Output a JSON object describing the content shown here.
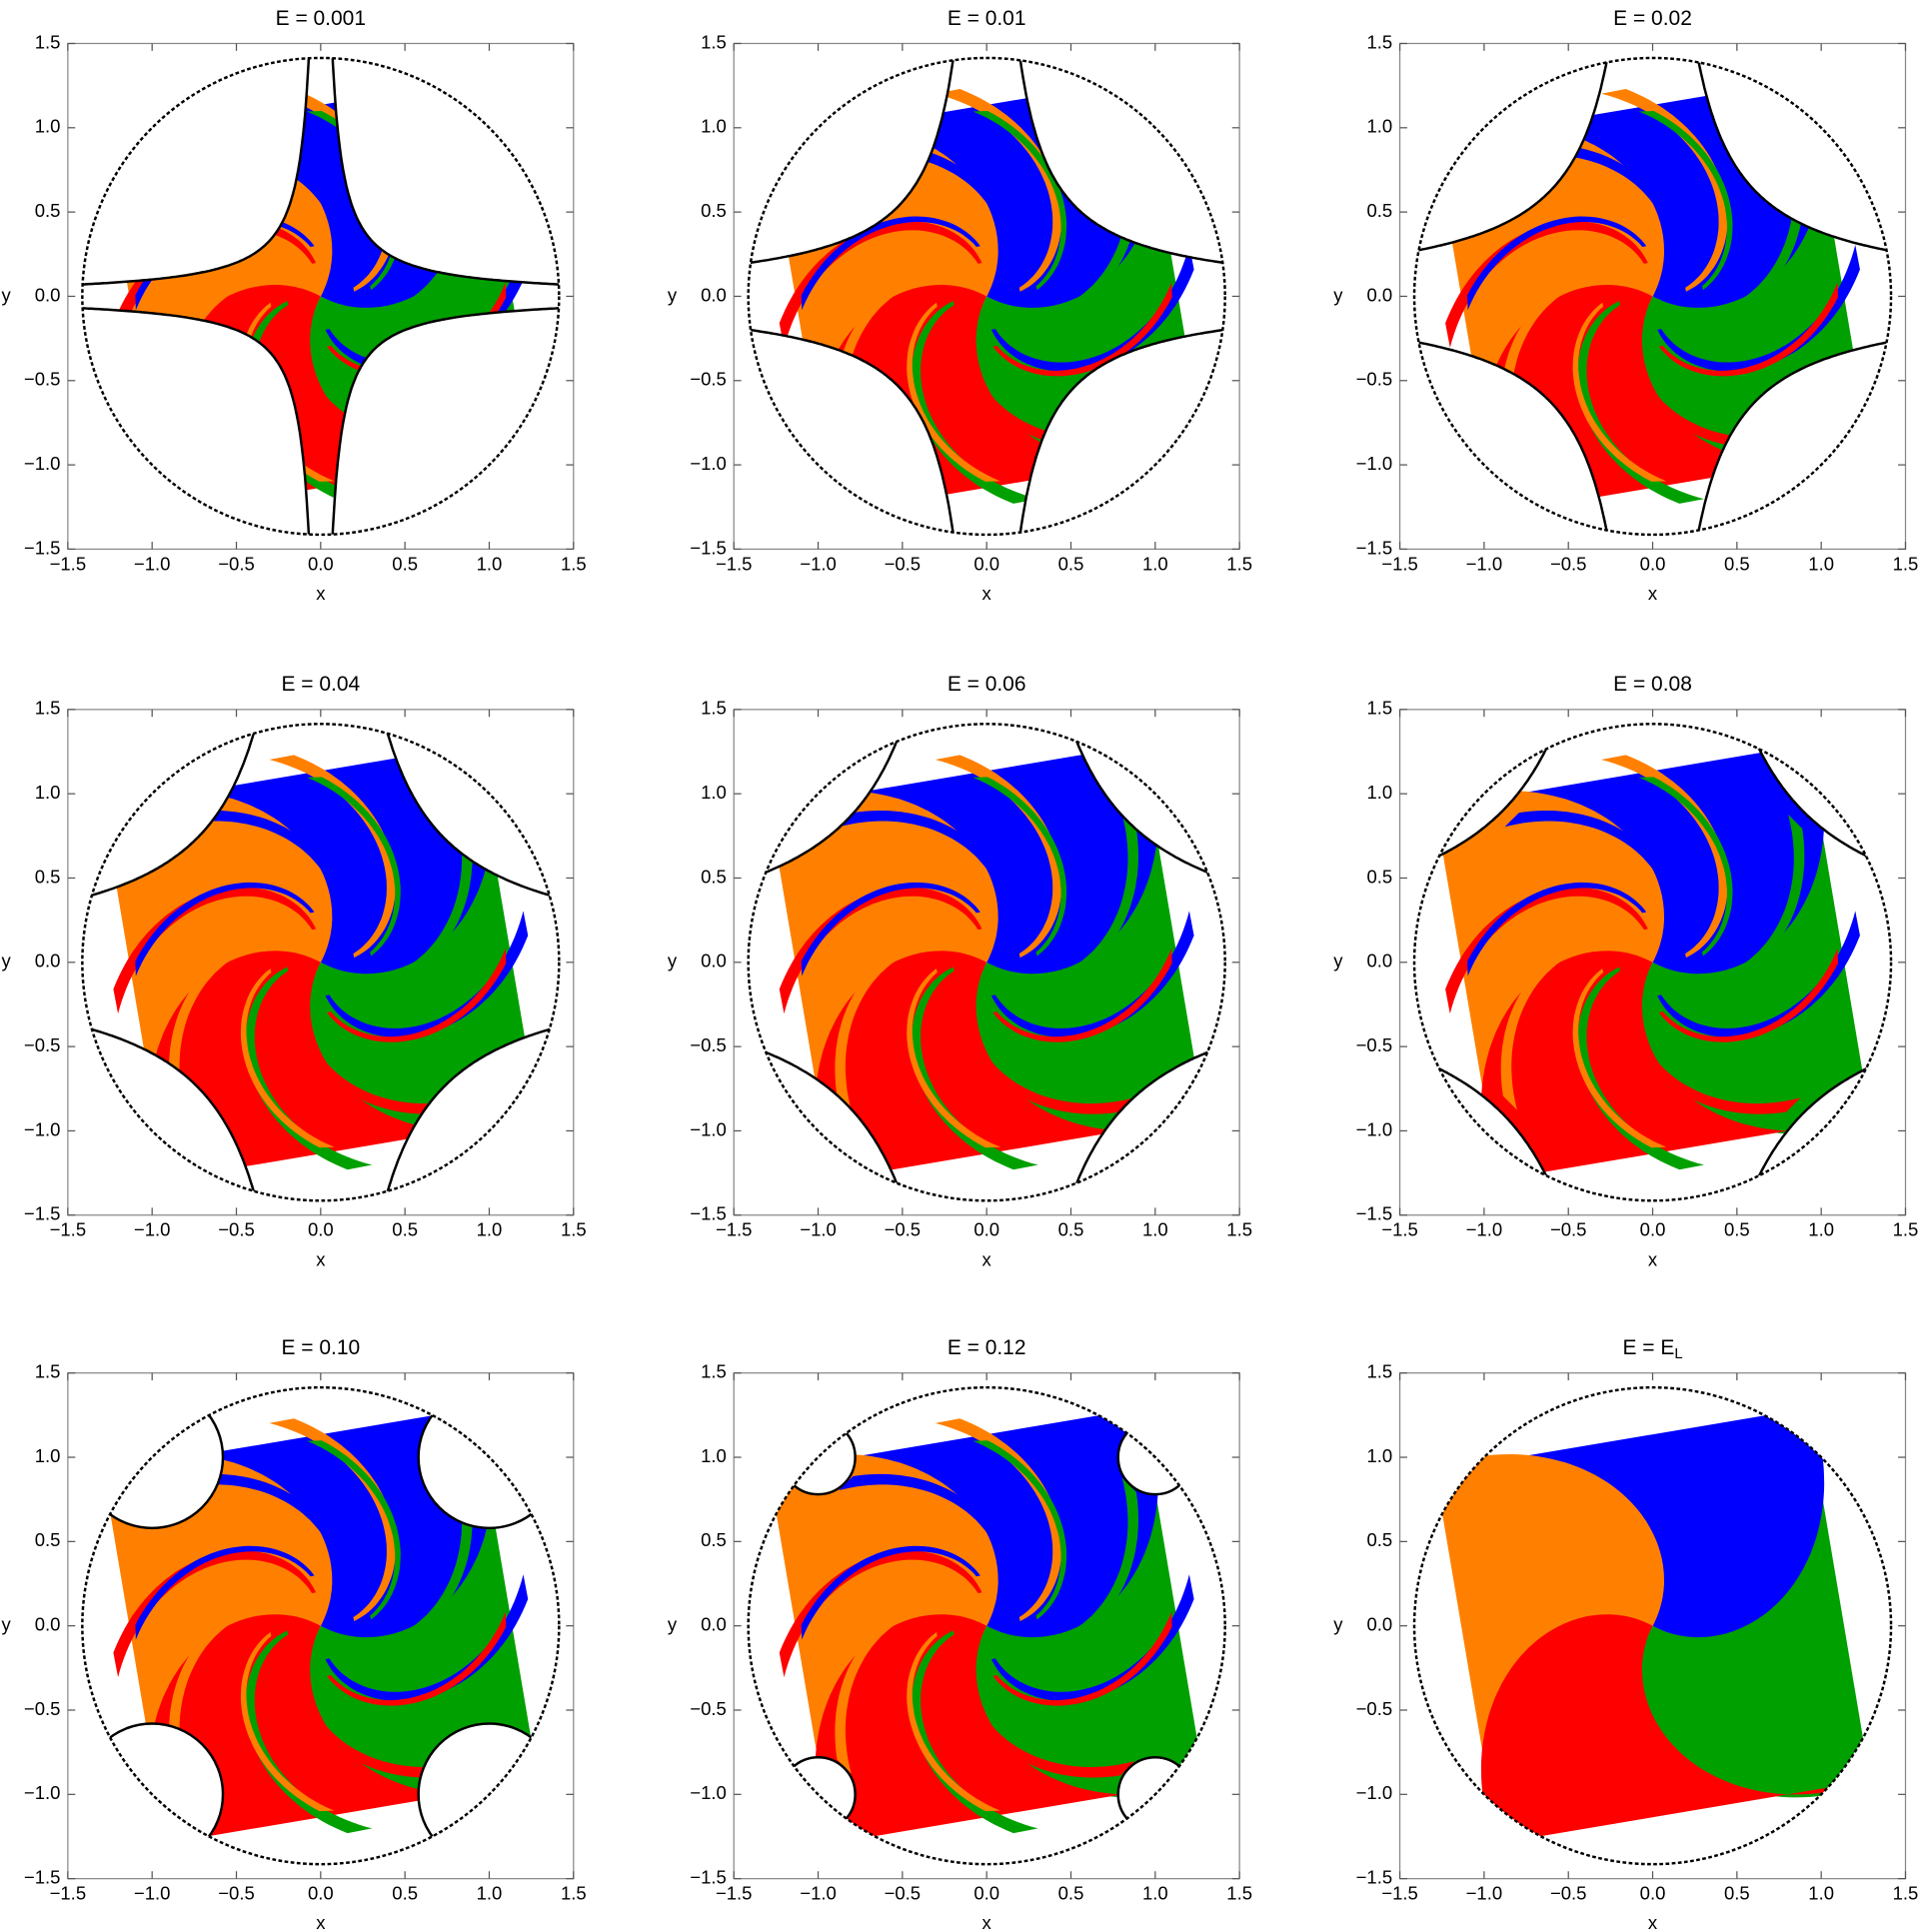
{
  "chart_data": [
    {
      "type": "basin",
      "title": "E = 0.001",
      "xlabel": "x",
      "ylabel": "y",
      "xlim": [
        -1.5,
        1.5
      ],
      "ylim": [
        -1.5,
        1.5
      ],
      "xticks": [
        {
          "value": -1.5,
          "label": "−1.5"
        },
        {
          "value": -1,
          "label": "−1.0"
        },
        {
          "value": -0.5,
          "label": "−0.5"
        },
        {
          "value": 0,
          "label": "0.0"
        },
        0.5,
        {
          "value": 1,
          "label": "1.0"
        },
        1.5
      ],
      "yticks": [
        {
          "value": -1.5,
          "label": "−1.5"
        },
        {
          "value": -1,
          "label": "−1.0"
        },
        {
          "value": -0.5,
          "label": "−0.5"
        },
        {
          "value": 0,
          "label": "0.0"
        },
        0.5,
        {
          "value": 1,
          "label": "1.0"
        },
        1.5
      ]
    },
    {
      "type": "basin",
      "title": "E = 0.01",
      "xlabel": "x",
      "ylabel": "y",
      "xlim": [
        -1.5,
        1.5
      ],
      "ylim": [
        -1.5,
        1.5
      ],
      "xticks": [
        {
          "value": -1.5,
          "label": "−1.5"
        },
        {
          "value": -1,
          "label": "−1.0"
        },
        {
          "value": -0.5,
          "label": "−0.5"
        },
        {
          "value": 0,
          "label": "0.0"
        },
        0.5,
        {
          "value": 1,
          "label": "1.0"
        },
        1.5
      ],
      "yticks": [
        {
          "value": -1.5,
          "label": "−1.5"
        },
        {
          "value": -1,
          "label": "−1.0"
        },
        {
          "value": -0.5,
          "label": "−0.5"
        },
        {
          "value": 0,
          "label": "0.0"
        },
        0.5,
        {
          "value": 1,
          "label": "1.0"
        },
        1.5
      ]
    },
    {
      "type": "basin",
      "title": "E = 0.02",
      "xlabel": "x",
      "ylabel": "y",
      "xlim": [
        -1.5,
        1.5
      ],
      "ylim": [
        -1.5,
        1.5
      ],
      "xticks": [
        {
          "value": -1.5,
          "label": "−1.5"
        },
        {
          "value": -1,
          "label": "−1.0"
        },
        {
          "value": -0.5,
          "label": "−0.5"
        },
        {
          "value": 0,
          "label": "0.0"
        },
        0.5,
        {
          "value": 1,
          "label": "1.0"
        },
        1.5
      ],
      "yticks": [
        {
          "value": -1.5,
          "label": "−1.5"
        },
        {
          "value": -1,
          "label": "−1.0"
        },
        {
          "value": -0.5,
          "label": "−0.5"
        },
        {
          "value": 0,
          "label": "0.0"
        },
        0.5,
        {
          "value": 1,
          "label": "1.0"
        },
        1.5
      ]
    },
    {
      "type": "basin",
      "title": "E = 0.04",
      "xlabel": "x",
      "ylabel": "y",
      "xlim": [
        -1.5,
        1.5
      ],
      "ylim": [
        -1.5,
        1.5
      ],
      "xticks": [
        {
          "value": -1.5,
          "label": "−1.5"
        },
        {
          "value": -1,
          "label": "−1.0"
        },
        {
          "value": -0.5,
          "label": "−0.5"
        },
        {
          "value": 0,
          "label": "0.0"
        },
        0.5,
        {
          "value": 1,
          "label": "1.0"
        },
        1.5
      ],
      "yticks": [
        {
          "value": -1.5,
          "label": "−1.5"
        },
        {
          "value": -1,
          "label": "−1.0"
        },
        {
          "value": -0.5,
          "label": "−0.5"
        },
        {
          "value": 0,
          "label": "0.0"
        },
        0.5,
        {
          "value": 1,
          "label": "1.0"
        },
        1.5
      ]
    },
    {
      "type": "basin",
      "title": "E = 0.06",
      "xlabel": "x",
      "ylabel": "y",
      "xlim": [
        -1.5,
        1.5
      ],
      "ylim": [
        -1.5,
        1.5
      ],
      "xticks": [
        {
          "value": -1.5,
          "label": "−1.5"
        },
        {
          "value": -1,
          "label": "−1.0"
        },
        {
          "value": -0.5,
          "label": "−0.5"
        },
        {
          "value": 0,
          "label": "0.0"
        },
        0.5,
        {
          "value": 1,
          "label": "1.0"
        },
        1.5
      ],
      "yticks": [
        {
          "value": -1.5,
          "label": "−1.5"
        },
        {
          "value": -1,
          "label": "−1.0"
        },
        {
          "value": -0.5,
          "label": "−0.5"
        },
        {
          "value": 0,
          "label": "0.0"
        },
        0.5,
        {
          "value": 1,
          "label": "1.0"
        },
        1.5
      ]
    },
    {
      "type": "basin",
      "title": "E = 0.08",
      "xlabel": "x",
      "ylabel": "y",
      "xlim": [
        -1.5,
        1.5
      ],
      "ylim": [
        -1.5,
        1.5
      ],
      "xticks": [
        {
          "value": -1.5,
          "label": "−1.5"
        },
        {
          "value": -1,
          "label": "−1.0"
        },
        {
          "value": -0.5,
          "label": "−0.5"
        },
        {
          "value": 0,
          "label": "0.0"
        },
        0.5,
        {
          "value": 1,
          "label": "1.0"
        },
        1.5
      ],
      "yticks": [
        {
          "value": -1.5,
          "label": "−1.5"
        },
        {
          "value": -1,
          "label": "−1.0"
        },
        {
          "value": -0.5,
          "label": "−0.5"
        },
        {
          "value": 0,
          "label": "0.0"
        },
        0.5,
        {
          "value": 1,
          "label": "1.0"
        },
        1.5
      ]
    },
    {
      "type": "basin",
      "title": "E = 0.10",
      "xlabel": "x",
      "ylabel": "y",
      "xlim": [
        -1.5,
        1.5
      ],
      "ylim": [
        -1.5,
        1.5
      ],
      "xticks": [
        {
          "value": -1.5,
          "label": "−1.5"
        },
        {
          "value": -1,
          "label": "−1.0"
        },
        {
          "value": -0.5,
          "label": "−0.5"
        },
        {
          "value": 0,
          "label": "0.0"
        },
        0.5,
        {
          "value": 1,
          "label": "1.0"
        },
        1.5
      ],
      "yticks": [
        {
          "value": -1.5,
          "label": "−1.5"
        },
        {
          "value": -1,
          "label": "−1.0"
        },
        {
          "value": -0.5,
          "label": "−0.5"
        },
        {
          "value": 0,
          "label": "0.0"
        },
        0.5,
        {
          "value": 1,
          "label": "1.0"
        },
        1.5
      ]
    },
    {
      "type": "basin",
      "title": "E = 0.12",
      "xlabel": "x",
      "ylabel": "y",
      "xlim": [
        -1.5,
        1.5
      ],
      "ylim": [
        -1.5,
        1.5
      ],
      "xticks": [
        {
          "value": -1.5,
          "label": "−1.5"
        },
        {
          "value": -1,
          "label": "−1.0"
        },
        {
          "value": -0.5,
          "label": "−0.5"
        },
        {
          "value": 0,
          "label": "0.0"
        },
        0.5,
        {
          "value": 1,
          "label": "1.0"
        },
        1.5
      ],
      "yticks": [
        {
          "value": -1.5,
          "label": "−1.5"
        },
        {
          "value": -1,
          "label": "−1.0"
        },
        {
          "value": -0.5,
          "label": "−0.5"
        },
        {
          "value": 0,
          "label": "0.0"
        },
        0.5,
        {
          "value": 1,
          "label": "1.0"
        },
        1.5
      ]
    },
    {
      "type": "basin",
      "title": "E = E",
      "title_subscript": "L",
      "xlabel": "x",
      "ylabel": "y",
      "xlim": [
        -1.5,
        1.5
      ],
      "ylim": [
        -1.5,
        1.5
      ],
      "xticks": [
        {
          "value": -1.5,
          "label": "−1.5"
        },
        {
          "value": -1,
          "label": "−1.0"
        },
        {
          "value": -0.5,
          "label": "−0.5"
        },
        {
          "value": 0,
          "label": "0.0"
        },
        0.5,
        {
          "value": 1,
          "label": "1.0"
        },
        1.5
      ],
      "yticks": [
        {
          "value": -1.5,
          "label": "−1.5"
        },
        {
          "value": -1,
          "label": "−1.0"
        },
        {
          "value": -0.5,
          "label": "−0.5"
        },
        {
          "value": 0,
          "label": "0.0"
        },
        0.5,
        {
          "value": 1,
          "label": "1.0"
        },
        1.5
      ]
    }
  ]
}
